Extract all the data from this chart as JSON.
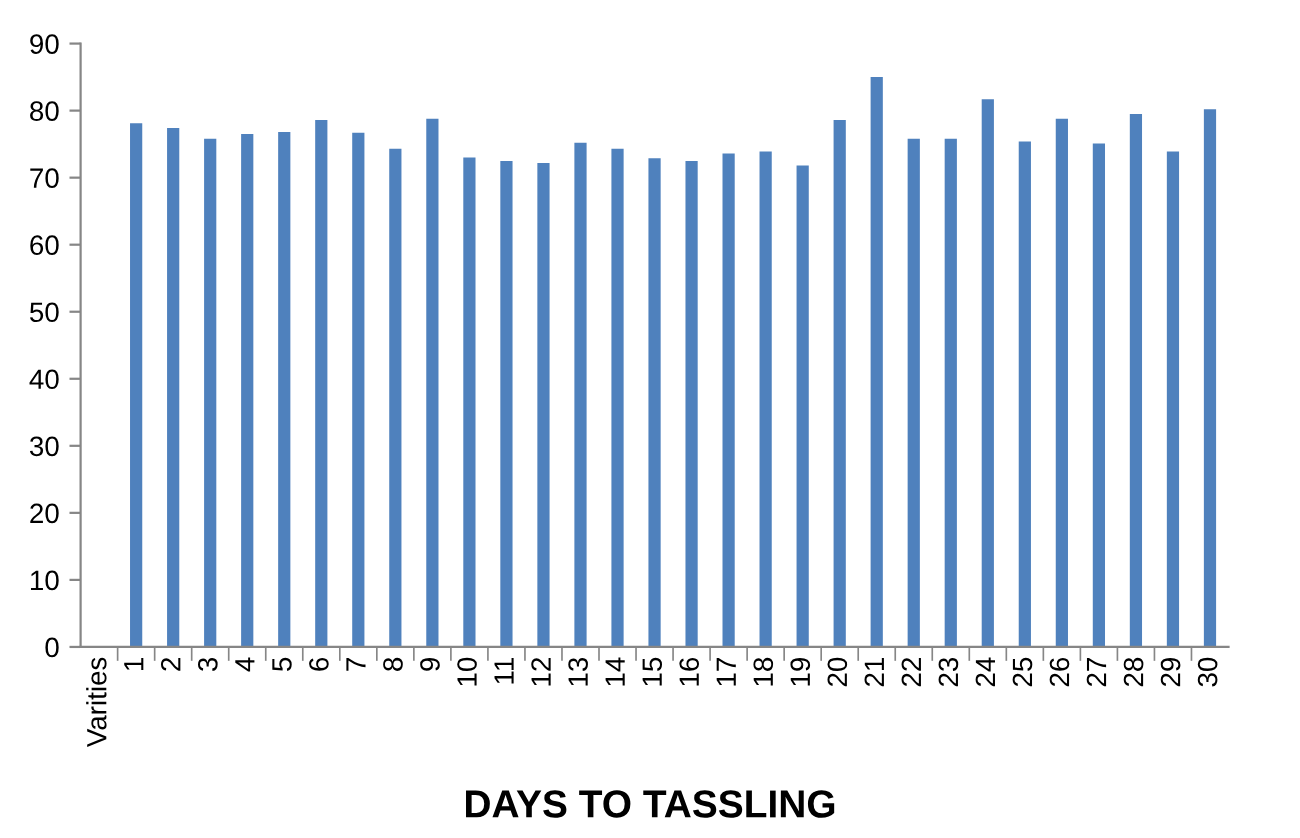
{
  "chart_data": {
    "type": "bar",
    "title": "DAYS TO TASSLING",
    "categories": [
      "Varities",
      "1",
      "2",
      "3",
      "4",
      "5",
      "6",
      "7",
      "8",
      "9",
      "10",
      "11",
      "12",
      "13",
      "14",
      "15",
      "16",
      "17",
      "18",
      "19",
      "20",
      "21",
      "22",
      "23",
      "24",
      "25",
      "26",
      "27",
      "28",
      "29",
      "30"
    ],
    "values": [
      null,
      78.1,
      77.4,
      75.8,
      76.5,
      76.8,
      78.6,
      76.7,
      74.3,
      78.8,
      73.0,
      72.5,
      72.2,
      75.2,
      74.3,
      72.9,
      72.5,
      73.6,
      73.9,
      71.8,
      78.6,
      85.0,
      75.8,
      75.8,
      81.7,
      75.4,
      78.8,
      75.1,
      79.5,
      73.9,
      80.2
    ],
    "color": "#4f81bd",
    "ylim": [
      0,
      90
    ],
    "yticks": [
      0,
      10,
      20,
      30,
      40,
      50,
      60,
      70,
      80,
      90
    ],
    "grid": false,
    "legend": false
  }
}
